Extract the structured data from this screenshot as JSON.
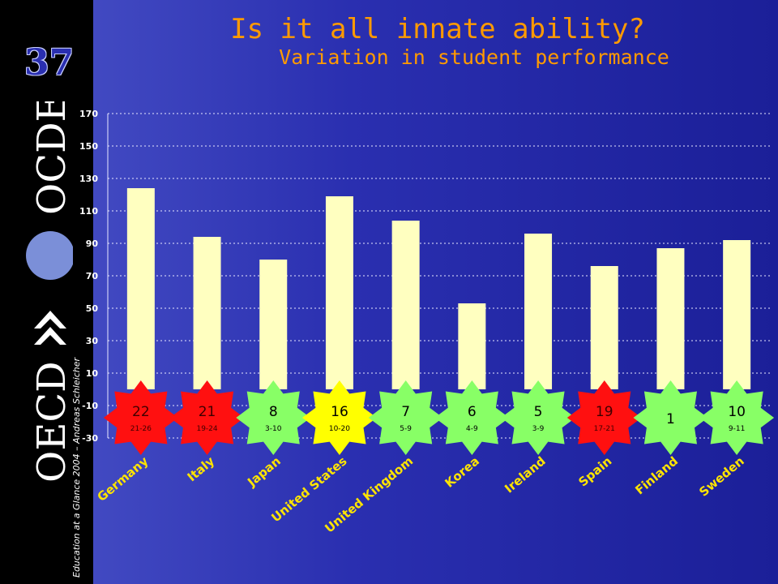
{
  "slide": {
    "number": "37",
    "title": "Is it all innate ability?",
    "subtitle": "Variation in student performance",
    "credit": "Education at a Glance 2004 – Andreas Schleicher",
    "logo_left": "OECD",
    "logo_right": "OCDE"
  },
  "colors": {
    "bar": "#ffffc0",
    "title": "#ff9a00",
    "red_badge": "#ff1010",
    "green_badge": "#88ff66",
    "yellow_badge": "#ffff00"
  },
  "chart_data": {
    "type": "bar",
    "title": "",
    "xlabel": "",
    "ylabel": "",
    "ylim": [
      -30,
      170
    ],
    "yticks": [
      -30,
      -10,
      10,
      30,
      50,
      70,
      90,
      110,
      130,
      150,
      170
    ],
    "ytick_labels": [
      "-30",
      "-10",
      "10",
      "30",
      "50",
      "70",
      "90",
      "110",
      "130",
      "150",
      "170"
    ],
    "grid": true,
    "categories": [
      "Germany",
      "Italy",
      "Japan",
      "United States",
      "United Kingdom",
      "Korea",
      "Ireland",
      "Spain",
      "Finland",
      "Sweden"
    ],
    "values": [
      124,
      94,
      80,
      119,
      104,
      53,
      96,
      76,
      87,
      92
    ],
    "badges": [
      {
        "rank": "22",
        "range": "21-26",
        "color": "red"
      },
      {
        "rank": "21",
        "range": "19-24",
        "color": "red"
      },
      {
        "rank": "8",
        "range": "3-10",
        "color": "green"
      },
      {
        "rank": "16",
        "range": "10-20",
        "color": "yellow"
      },
      {
        "rank": "7",
        "range": "5-9",
        "color": "green"
      },
      {
        "rank": "6",
        "range": "4-9",
        "color": "green"
      },
      {
        "rank": "5",
        "range": "3-9",
        "color": "green"
      },
      {
        "rank": "19",
        "range": "17-21",
        "color": "red"
      },
      {
        "rank": "1",
        "range": "",
        "color": "green"
      },
      {
        "rank": "10",
        "range": "9-11",
        "color": "green"
      }
    ]
  }
}
